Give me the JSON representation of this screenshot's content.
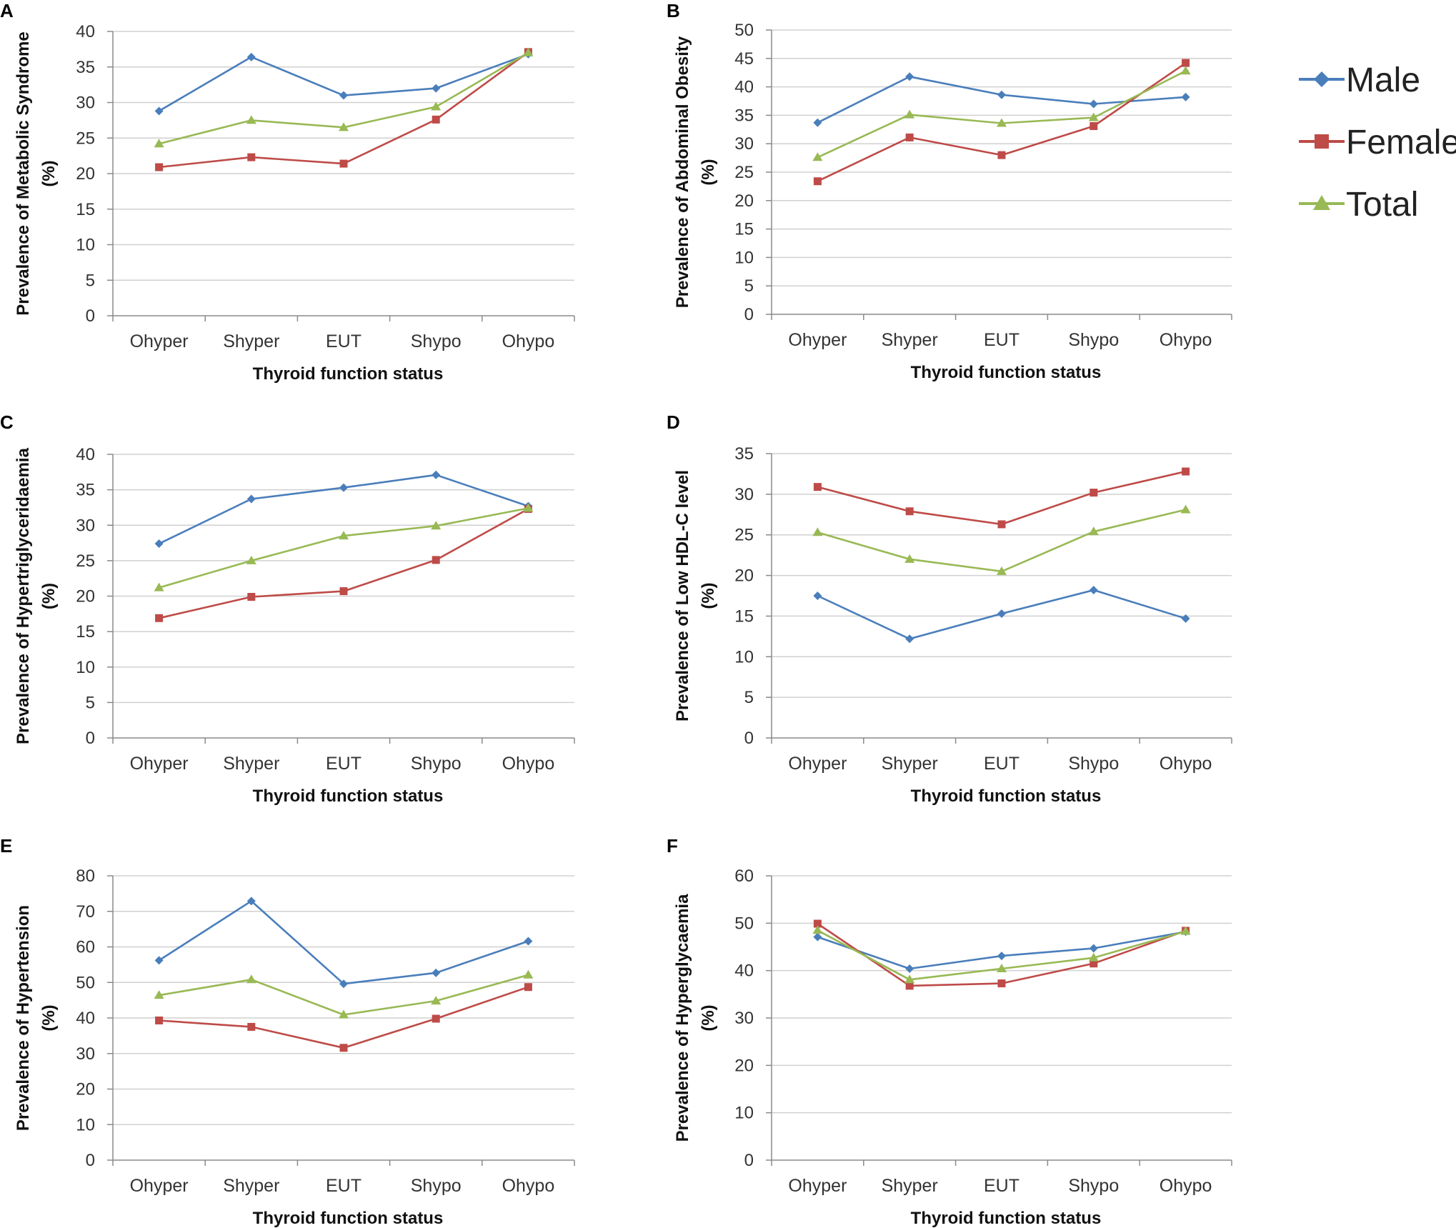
{
  "legend": [
    {
      "name": "Male",
      "color": "#4a7ebb",
      "marker": "diamond"
    },
    {
      "name": "Female",
      "color": "#be4b48",
      "marker": "square"
    },
    {
      "name": "Total",
      "color": "#98b954",
      "marker": "triangle"
    }
  ],
  "chart_data": [
    {
      "letter": "A",
      "type": "line",
      "title": "",
      "ylabel": [
        "Prevalence  of  Metabolic  Syndrome",
        "(%)"
      ],
      "xlabel": "Thyroid  function  status",
      "categories": [
        "Ohyper",
        "Shyper",
        "EUT",
        "Shypo",
        "Ohypo"
      ],
      "ylim": [
        0,
        40
      ],
      "ystep": 5,
      "grid": true,
      "series": [
        {
          "name": "Male",
          "values": [
            28.8,
            36.4,
            31.0,
            32.0,
            36.8
          ]
        },
        {
          "name": "Female",
          "values": [
            20.9,
            22.3,
            21.4,
            27.6,
            37.1
          ]
        },
        {
          "name": "Total",
          "values": [
            24.2,
            27.5,
            26.5,
            29.4,
            37.0
          ]
        }
      ]
    },
    {
      "letter": "B",
      "type": "line",
      "title": "",
      "ylabel": [
        "Prevalence  of Abdominal  Obesity",
        "(%)"
      ],
      "xlabel": "Thyroid  function  status",
      "categories": [
        "Ohyper",
        "Shyper",
        "EUT",
        "Shypo",
        "Ohypo"
      ],
      "ylim": [
        0,
        50
      ],
      "ystep": 5,
      "grid": true,
      "series": [
        {
          "name": "Male",
          "values": [
            33.7,
            41.8,
            38.6,
            37.0,
            38.2
          ]
        },
        {
          "name": "Female",
          "values": [
            23.4,
            31.1,
            28.0,
            33.1,
            44.2
          ]
        },
        {
          "name": "Total",
          "values": [
            27.6,
            35.1,
            33.6,
            34.6,
            42.8
          ]
        }
      ]
    },
    {
      "letter": "C",
      "type": "line",
      "title": "",
      "ylabel": [
        "Prevalence  of  Hypertriglyceridaemia",
        "(%)"
      ],
      "xlabel": "Thyroid  function  status",
      "categories": [
        "Ohyper",
        "Shyper",
        "EUT",
        "Shypo",
        "Ohypo"
      ],
      "ylim": [
        0,
        40
      ],
      "ystep": 5,
      "grid": true,
      "series": [
        {
          "name": "Male",
          "values": [
            27.4,
            33.7,
            35.3,
            37.1,
            32.7
          ]
        },
        {
          "name": "Female",
          "values": [
            16.9,
            19.9,
            20.7,
            25.1,
            32.3
          ]
        },
        {
          "name": "Total",
          "values": [
            21.2,
            25.0,
            28.5,
            29.9,
            32.4
          ]
        }
      ]
    },
    {
      "letter": "D",
      "type": "line",
      "title": "",
      "ylabel": [
        "Prevalence  of  Low  HDL-C  level",
        "(%)"
      ],
      "xlabel": "Thyroid  function  status",
      "categories": [
        "Ohyper",
        "Shyper",
        "EUT",
        "Shypo",
        "Ohypo"
      ],
      "ylim": [
        0,
        35
      ],
      "ystep": 5,
      "grid": true,
      "series": [
        {
          "name": "Male",
          "values": [
            17.5,
            12.2,
            15.3,
            18.2,
            14.7
          ]
        },
        {
          "name": "Female",
          "values": [
            30.9,
            27.9,
            26.3,
            30.2,
            32.8
          ]
        },
        {
          "name": "Total",
          "values": [
            25.3,
            22.0,
            20.5,
            25.4,
            28.1
          ]
        }
      ]
    },
    {
      "letter": "E",
      "type": "line",
      "title": "",
      "ylabel": [
        "Prevalence  of  Hypertension",
        "(%)"
      ],
      "xlabel": "Thyroid  function  status",
      "categories": [
        "Ohyper",
        "Shyper",
        "EUT",
        "Shypo",
        "Ohypo"
      ],
      "ylim": [
        0,
        80
      ],
      "ystep": 10,
      "grid": true,
      "series": [
        {
          "name": "Male",
          "values": [
            56.2,
            72.9,
            49.6,
            52.7,
            61.6
          ]
        },
        {
          "name": "Female",
          "values": [
            39.3,
            37.5,
            31.6,
            39.8,
            48.7
          ]
        },
        {
          "name": "Total",
          "values": [
            46.4,
            50.8,
            40.9,
            44.8,
            52.1
          ]
        }
      ]
    },
    {
      "letter": "F",
      "type": "line",
      "title": "",
      "ylabel": [
        "Prevalence  of Hyperglycaemia",
        "(%)"
      ],
      "xlabel": "Thyroid  function  status",
      "categories": [
        "Ohyper",
        "Shyper",
        "EUT",
        "Shypo",
        "Ohypo"
      ],
      "ylim": [
        0,
        60
      ],
      "ystep": 10,
      "grid": true,
      "series": [
        {
          "name": "Male",
          "values": [
            47.1,
            40.4,
            43.1,
            44.7,
            48.2
          ]
        },
        {
          "name": "Female",
          "values": [
            49.9,
            36.8,
            37.3,
            41.5,
            48.4
          ]
        },
        {
          "name": "Total",
          "values": [
            48.5,
            38.1,
            40.4,
            42.7,
            48.3
          ]
        }
      ]
    }
  ]
}
